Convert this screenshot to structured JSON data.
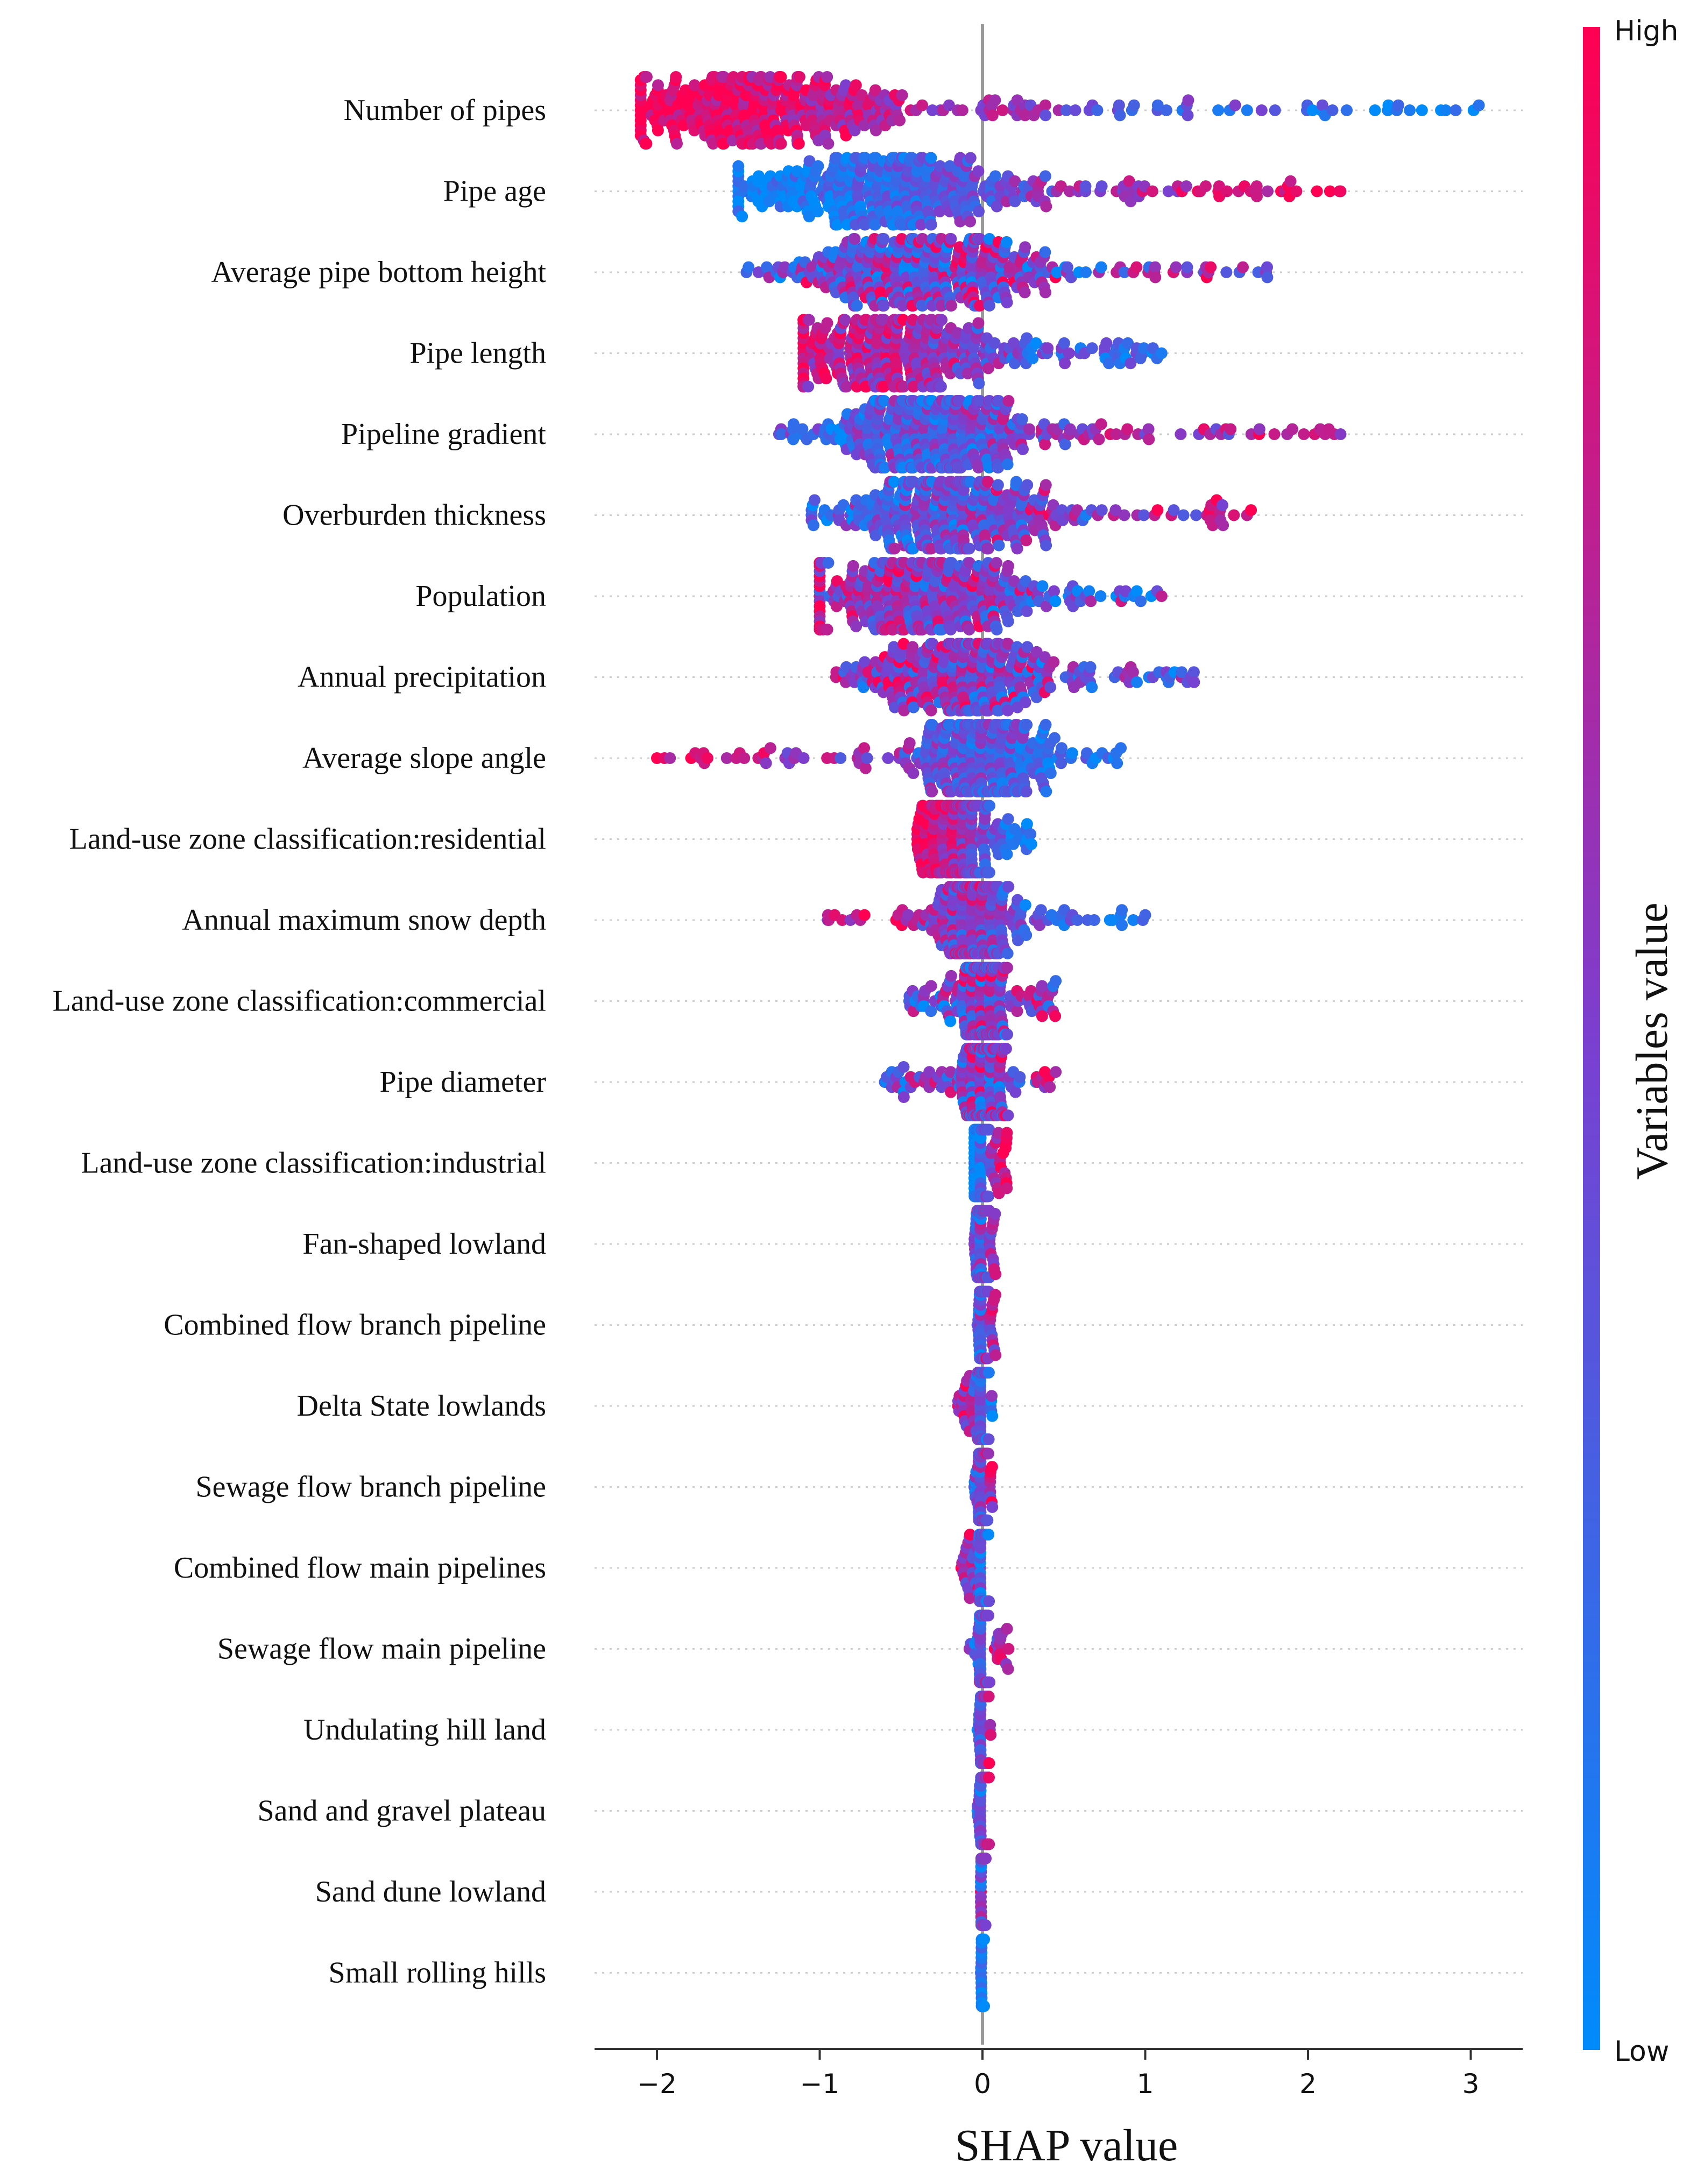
{
  "chart_data": {
    "type": "scatter",
    "subtype": "shap-beeswarm-summary",
    "xlabel": "SHAP value",
    "xlim": [
      -2.4,
      3.3
    ],
    "xticks": [
      -2,
      -1,
      0,
      1,
      2,
      3
    ],
    "xtick_labels": [
      "−2",
      "−1",
      "0",
      "1",
      "2",
      "3"
    ],
    "colorbar": {
      "title": "Variables value",
      "high_label": "High",
      "low_label": "Low",
      "high_color": "#ff0052",
      "mid_color": "#7b3fd0",
      "low_color": "#008bfb"
    },
    "features": [
      {
        "name": "Number of pipes",
        "min": -2.1,
        "max": 3.05,
        "center": -1.3,
        "spread": 0.45,
        "corr": -1,
        "n": 420
      },
      {
        "name": "Pipe age",
        "min": -1.5,
        "max": 2.2,
        "center": -0.6,
        "spread": 0.45,
        "corr": 1,
        "n": 420
      },
      {
        "name": "Average pipe bottom height",
        "min": -1.45,
        "max": 1.75,
        "center": -0.4,
        "spread": 0.4,
        "corr": 0.2,
        "n": 400
      },
      {
        "name": "Pipe length",
        "min": -1.1,
        "max": 1.1,
        "center": -0.5,
        "spread": 0.35,
        "corr": -0.7,
        "n": 380
      },
      {
        "name": "Pipeline gradient",
        "min": -1.25,
        "max": 2.2,
        "center": -0.3,
        "spread": 0.35,
        "corr": 0.6,
        "n": 390
      },
      {
        "name": "Overburden thickness",
        "min": -1.05,
        "max": 1.65,
        "center": -0.2,
        "spread": 0.35,
        "corr": 0.5,
        "n": 380
      },
      {
        "name": "Population",
        "min": -1.0,
        "max": 1.1,
        "center": -0.4,
        "spread": 0.35,
        "corr": -0.4,
        "n": 370
      },
      {
        "name": "Annual precipitation",
        "min": -0.9,
        "max": 1.3,
        "center": -0.1,
        "spread": 0.3,
        "corr": -0.3,
        "n": 350
      },
      {
        "name": "Average slope angle",
        "min": -2.0,
        "max": 0.85,
        "center": 0.0,
        "spread": 0.2,
        "corr": -0.8,
        "n": 340
      },
      {
        "name": "Land-use zone classification:residential",
        "min": -0.4,
        "max": 0.3,
        "center": -0.15,
        "spread": 0.12,
        "corr": -1,
        "n": 280
      },
      {
        "name": "Annual maximum snow depth",
        "min": -0.95,
        "max": 1.0,
        "center": -0.05,
        "spread": 0.12,
        "corr": -0.6,
        "n": 300
      },
      {
        "name": "Land-use zone classification:commercial",
        "min": -0.45,
        "max": 0.45,
        "center": 0.0,
        "spread": 0.08,
        "corr": 0.3,
        "n": 260
      },
      {
        "name": "Pipe diameter",
        "min": -0.6,
        "max": 0.45,
        "center": 0.0,
        "spread": 0.07,
        "corr": 0.2,
        "n": 260
      },
      {
        "name": "Land-use zone classification:industrial",
        "min": -0.05,
        "max": 0.15,
        "center": -0.02,
        "spread": 0.02,
        "corr": 1,
        "n": 200
      },
      {
        "name": "Fan-shaped lowland",
        "min": -0.05,
        "max": 0.08,
        "center": 0.0,
        "spread": 0.02,
        "corr": 0.5,
        "n": 180
      },
      {
        "name": "Combined flow branch pipeline",
        "min": -0.03,
        "max": 0.08,
        "center": 0.0,
        "spread": 0.01,
        "corr": 0.5,
        "n": 170
      },
      {
        "name": "Delta State lowlands",
        "min": -0.15,
        "max": 0.06,
        "center": 0.0,
        "spread": 0.015,
        "corr": -0.5,
        "n": 170
      },
      {
        "name": "Sewage flow branch pipeline",
        "min": -0.05,
        "max": 0.06,
        "center": 0.0,
        "spread": 0.015,
        "corr": 0.5,
        "n": 170
      },
      {
        "name": "Combined flow main pipelines",
        "min": -0.13,
        "max": 0.04,
        "center": 0.0,
        "spread": 0.01,
        "corr": -0.5,
        "n": 160
      },
      {
        "name": "Sewage flow main pipeline",
        "min": -0.08,
        "max": 0.16,
        "center": 0.0,
        "spread": 0.01,
        "corr": 0.5,
        "n": 160
      },
      {
        "name": "Undulating hill land",
        "min": -0.03,
        "max": 0.05,
        "center": 0.0,
        "spread": 0.008,
        "corr": 0.5,
        "n": 150
      },
      {
        "name": "Sand and gravel plateau",
        "min": -0.03,
        "max": 0.04,
        "center": 0.0,
        "spread": 0.008,
        "corr": 0.5,
        "n": 150
      },
      {
        "name": "Sand dune lowland",
        "min": -0.01,
        "max": 0.02,
        "center": 0.0,
        "spread": 0.005,
        "corr": 0.2,
        "n": 140
      },
      {
        "name": "Small rolling hills",
        "min": -0.01,
        "max": 0.01,
        "center": 0.0,
        "spread": 0.003,
        "corr": 0,
        "n": 140
      }
    ]
  }
}
